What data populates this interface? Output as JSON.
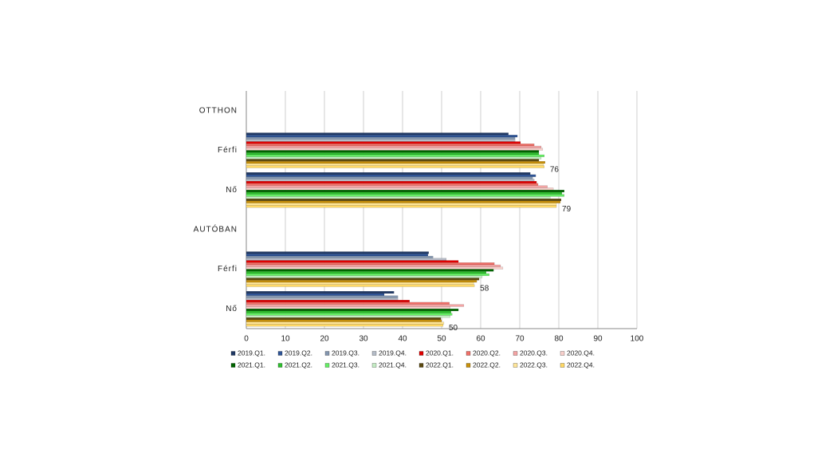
{
  "chart_data": {
    "type": "hbar",
    "categories": [
      "OTTHON",
      "Férfi",
      "Nő",
      "AUTÓBAN",
      "Férfi",
      "Nő"
    ],
    "xlim": [
      0,
      100
    ],
    "xticks": [
      0,
      10,
      20,
      30,
      40,
      50,
      60,
      70,
      80,
      90,
      100
    ],
    "grid": true,
    "series": [
      {
        "name": "2019.Q1.",
        "color": "#1f3864",
        "values": [
          null,
          67.1,
          72.7,
          null,
          46.7,
          37.8
        ]
      },
      {
        "name": "2019.Q2.",
        "color": "#2f5597",
        "values": [
          null,
          69.4,
          74.1,
          null,
          46.5,
          35.3
        ]
      },
      {
        "name": "2019.Q3.",
        "color": "#8497b0",
        "values": [
          null,
          68.8,
          73.3,
          null,
          47.8,
          38.8
        ]
      },
      {
        "name": "2019.Q4.",
        "color": "#b4bcc8",
        "values": [
          null,
          68.8,
          73.7,
          null,
          51.2,
          38.8
        ]
      },
      {
        "name": "2020.Q1.",
        "color": "#e00000",
        "values": [
          null,
          70.2,
          74.3,
          null,
          54.3,
          41.8
        ]
      },
      {
        "name": "2020.Q2.",
        "color": "#f07068",
        "values": [
          null,
          73.7,
          74.7,
          null,
          63.5,
          52.0
        ]
      },
      {
        "name": "2020.Q3.",
        "color": "#f4a4a4",
        "values": [
          null,
          75.5,
          77.1,
          null,
          65.1,
          55.7
        ]
      },
      {
        "name": "2020.Q4.",
        "color": "#f8d0cc",
        "values": [
          null,
          75.9,
          78.6,
          null,
          65.7,
          52.2
        ]
      },
      {
        "name": "2021.Q1.",
        "color": "#006400",
        "values": [
          null,
          74.9,
          81.4,
          null,
          63.3,
          54.3
        ]
      },
      {
        "name": "2021.Q2.",
        "color": "#2fbf2f",
        "values": [
          null,
          74.9,
          80.8,
          null,
          61.4,
          52.4
        ]
      },
      {
        "name": "2021.Q3.",
        "color": "#66ee66",
        "values": [
          null,
          76.3,
          81.4,
          null,
          62.2,
          52.7
        ]
      },
      {
        "name": "2021.Q4.",
        "color": "#c4ecc4",
        "values": [
          null,
          75.5,
          77.8,
          null,
          60.4,
          52.2
        ]
      },
      {
        "name": "2022.Q1.",
        "color": "#5c4a10",
        "values": [
          null,
          74.9,
          80.6,
          null,
          59.6,
          49.8
        ]
      },
      {
        "name": "2022.Q2.",
        "color": "#c8900a",
        "values": [
          null,
          76.5,
          80.4,
          null,
          59.0,
          50.0
        ]
      },
      {
        "name": "2022.Q3.",
        "color": "#ffe699",
        "values": [
          null,
          76.1,
          79.4,
          null,
          58.2,
          50.6
        ]
      },
      {
        "name": "2022.Q4.",
        "color": "#ffd966",
        "values": [
          null,
          76.3,
          79.4,
          null,
          58.4,
          50.4
        ],
        "value_labels": [
          null,
          "76",
          "79",
          null,
          "58",
          "50"
        ]
      }
    ]
  }
}
